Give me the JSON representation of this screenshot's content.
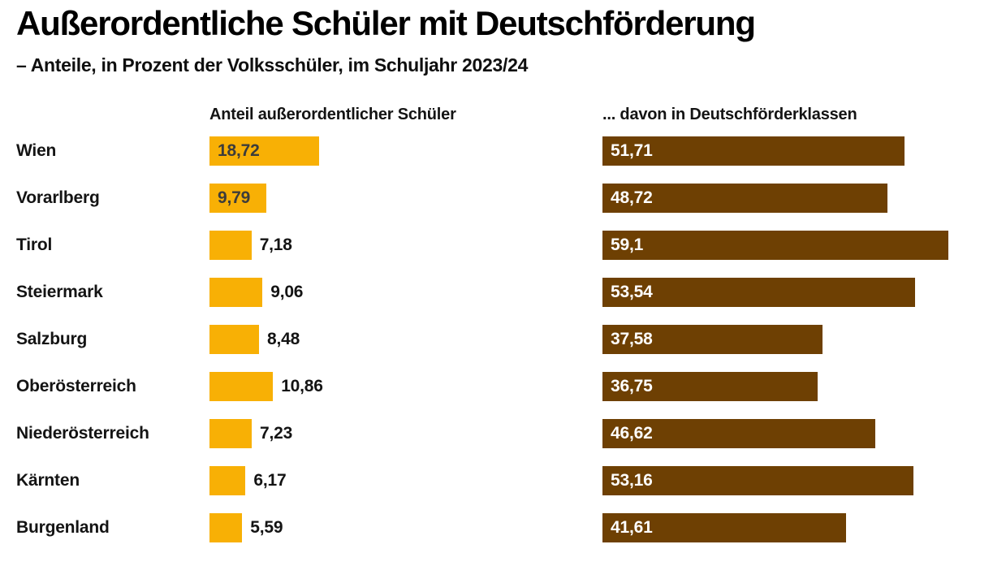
{
  "chart_data": {
    "type": "bar",
    "orientation": "horizontal",
    "title": "Außerordentliche Schüler mit Deutschförderung",
    "subtitle": "– Anteile, in Prozent der Volksschüler, im Schuljahr 2023/24",
    "series_headers": [
      "Anteil außerordentlicher Schüler",
      "... davon in Deutschförderklassen"
    ],
    "categories": [
      "Wien",
      "Vorarlberg",
      "Tirol",
      "Steiermark",
      "Salzburg",
      "Oberösterreich",
      "Niederösterreich",
      "Kärnten",
      "Burgenland"
    ],
    "series": [
      {
        "name": "Anteil außerordentlicher Schüler",
        "color": "#F8B005",
        "label_color_inside": "#3C3C3B",
        "values": [
          18.72,
          9.79,
          7.18,
          9.06,
          8.48,
          10.86,
          7.23,
          6.17,
          5.59
        ],
        "labels": [
          "18,72",
          "9,79",
          "7,18",
          "9,06",
          "8,48",
          "10,86",
          "7,23",
          "6,17",
          "5,59"
        ],
        "label_inside": [
          true,
          true,
          false,
          false,
          false,
          false,
          false,
          false,
          false
        ]
      },
      {
        "name": "... davon in Deutschförderklassen",
        "color": "#6E4003",
        "label_color_inside": "#FFFFFF",
        "values": [
          51.71,
          48.72,
          59.1,
          53.54,
          37.58,
          36.75,
          46.62,
          53.16,
          41.61
        ],
        "labels": [
          "51,71",
          "48,72",
          "59,1",
          "53,54",
          "37,58",
          "36,75",
          "46,62",
          "53,16",
          "41,61"
        ],
        "label_inside": [
          true,
          true,
          true,
          true,
          true,
          true,
          true,
          true,
          true
        ]
      }
    ],
    "value_axis": {
      "min": 0,
      "max": 67,
      "unit": "Prozent",
      "decimal_separator": ",",
      "axis_hidden": true
    },
    "layout_hints": {
      "grid": false,
      "legend": "column-headers-above-bars",
      "value_labels_on_bars": true
    }
  }
}
